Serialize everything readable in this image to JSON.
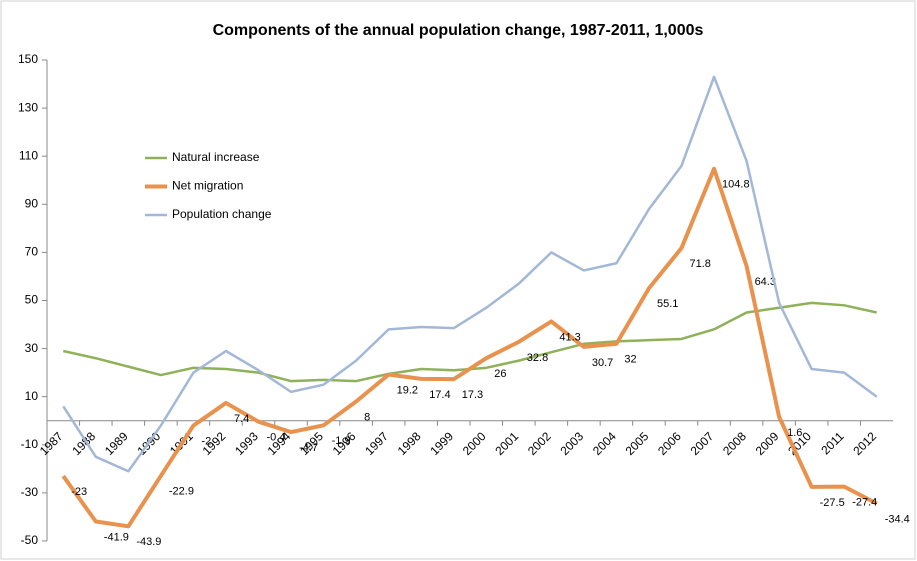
{
  "chart_data": {
    "type": "line",
    "title": "Components of the annual population change, 1987-2011, 1,000s",
    "categories": [
      "1987",
      "1988",
      "1989",
      "1990",
      "1991",
      "1992",
      "1993",
      "1994",
      "1995",
      "1996",
      "1997",
      "1998",
      "1999",
      "2000",
      "2001",
      "2002",
      "2003",
      "2004",
      "2005",
      "2006",
      "2007",
      "2008",
      "2009",
      "2010",
      "2011",
      "2012"
    ],
    "series": [
      {
        "name": "Natural increase",
        "color": "#8fb15a",
        "values": [
          29,
          26,
          22.5,
          19,
          22,
          21.5,
          20,
          16.5,
          17,
          16.5,
          19.5,
          21.5,
          21,
          22,
          25,
          28.5,
          32,
          33,
          33.5,
          34,
          38,
          45,
          47,
          49,
          48,
          45
        ]
      },
      {
        "name": "Net migration",
        "color": "#e8924d",
        "labeled": true,
        "values": [
          -23,
          -41.9,
          -43.9,
          -22.9,
          -2,
          7.4,
          -0.4,
          -4.7,
          -1.9,
          8,
          19.2,
          17.4,
          17.3,
          26,
          32.8,
          41.3,
          30.7,
          32,
          55.1,
          71.8,
          104.8,
          64.3,
          1.6,
          -27.5,
          -27.4,
          -34.4
        ]
      },
      {
        "name": "Population change",
        "color": "#a3b8d6",
        "values": [
          6,
          -15,
          -21,
          -2,
          20,
          29,
          21,
          12,
          15,
          25,
          38,
          39,
          38.5,
          47,
          57,
          70,
          62.5,
          65.5,
          88,
          106,
          143,
          108,
          49,
          21.5,
          20,
          10
        ]
      }
    ],
    "ylim": [
      -50,
      150
    ],
    "yticks": [
      -50,
      -30,
      -10,
      10,
      30,
      50,
      70,
      90,
      110,
      130,
      150
    ],
    "grid": false,
    "legend": "top-left"
  }
}
